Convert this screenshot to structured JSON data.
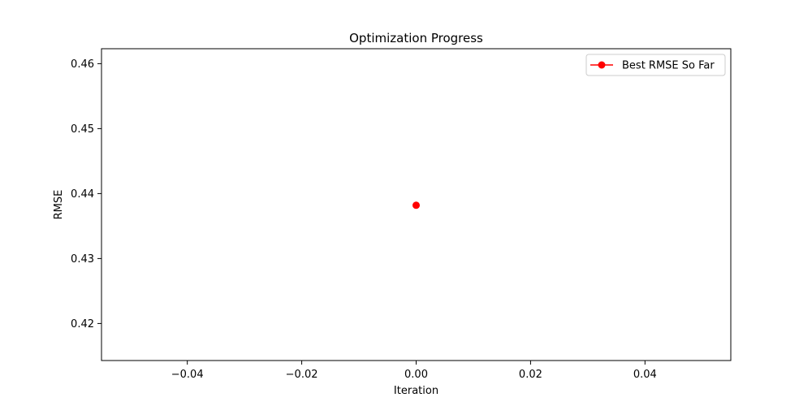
{
  "chart_data": {
    "type": "line",
    "title": "Optimization Progress",
    "xlabel": "Iteration",
    "ylabel": "RMSE",
    "xlim": [
      -0.055,
      0.055
    ],
    "ylim": [
      0.4143,
      0.4623
    ],
    "xticks": [
      -0.04,
      -0.02,
      0.0,
      0.02,
      0.04
    ],
    "xtick_labels": [
      "−0.04",
      "−0.02",
      "0.00",
      "0.02",
      "0.04"
    ],
    "yticks": [
      0.42,
      0.43,
      0.44,
      0.45,
      0.46
    ],
    "ytick_labels": [
      "0.42",
      "0.43",
      "0.44",
      "0.45",
      "0.46"
    ],
    "grid": false,
    "legend_position": "top-right",
    "series": [
      {
        "name": "Best RMSE So Far",
        "color": "#ff0000",
        "marker": "circle",
        "x": [
          0
        ],
        "y": [
          0.4382
        ]
      }
    ]
  }
}
